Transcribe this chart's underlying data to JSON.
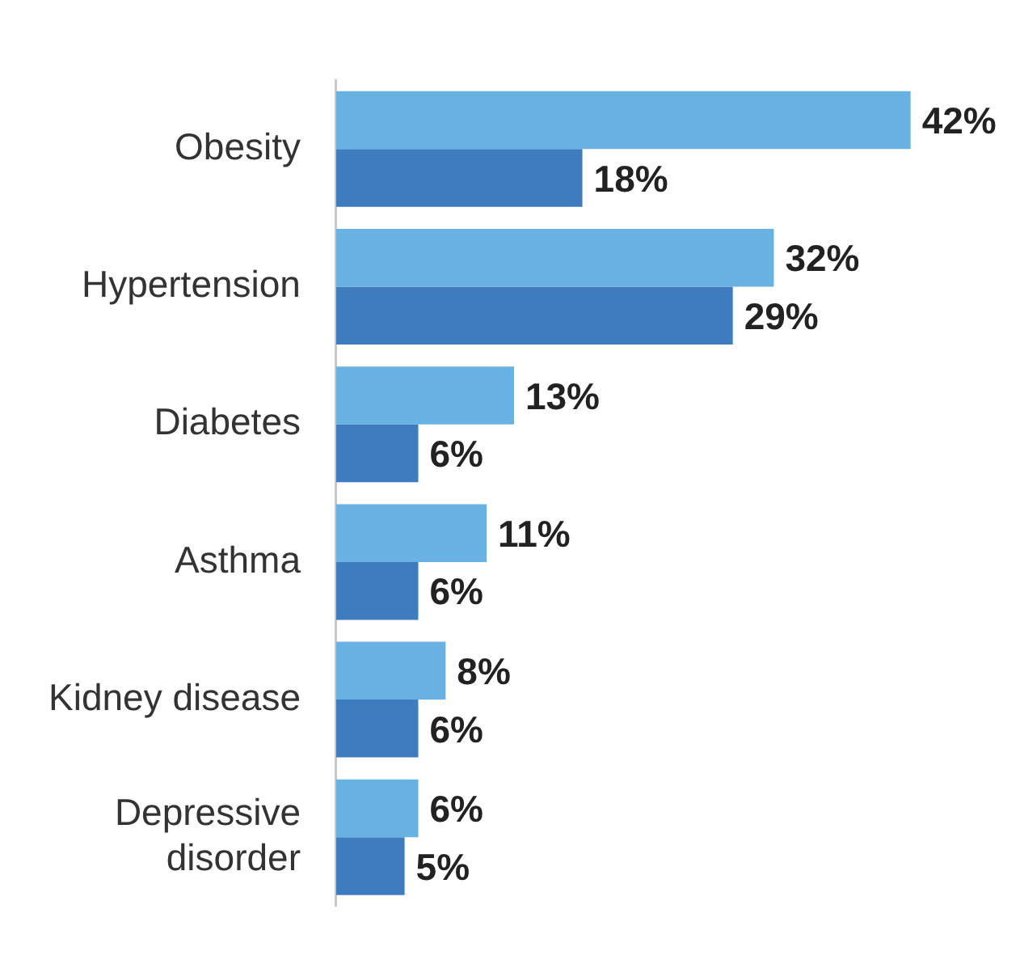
{
  "chart_data": {
    "type": "bar",
    "orientation": "horizontal",
    "categories": [
      "Obesity",
      "Hypertension",
      "Diabetes",
      "Asthma",
      "Kidney disease",
      "Depressive disorder"
    ],
    "series": [
      {
        "color": "#68b2e3",
        "values": [
          42,
          32,
          13,
          11,
          8,
          6
        ],
        "value_labels": [
          "42%",
          "32%",
          "13%",
          "11%",
          "8%",
          "6%"
        ]
      },
      {
        "color": "#3f7bbf",
        "values": [
          18,
          29,
          6,
          6,
          6,
          5
        ],
        "value_labels": [
          "18%",
          "29%",
          "6%",
          "6%",
          "6%",
          "5%"
        ]
      }
    ],
    "legend": false,
    "tick_labels": "y"
  }
}
